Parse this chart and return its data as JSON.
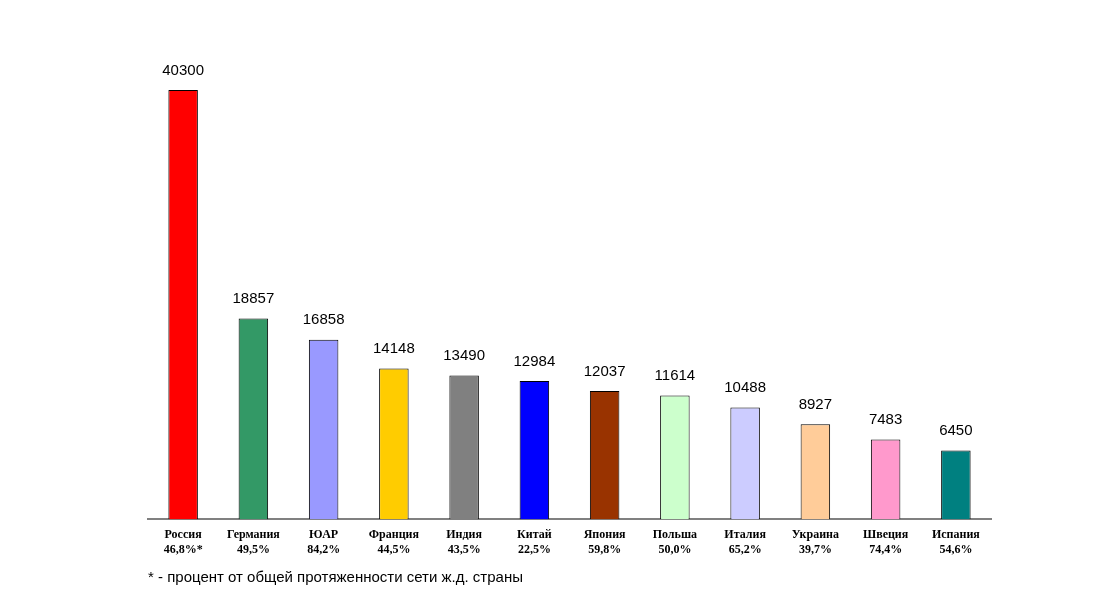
{
  "chart_data": {
    "type": "bar",
    "categories": [
      "Россия\n46,8%*",
      "Германия\n49,5%",
      "ЮАР\n84,2%",
      "Франция\n44,5%",
      "Индия\n43,5%",
      "Китай\n22,5%",
      "Япония\n59,8%",
      "Польша\n50,0%",
      "Италия\n65,2%",
      "Украина\n39,7%",
      "Швеция\n74,4%",
      "Испания\n54,6%"
    ],
    "values": [
      40300,
      18857,
      16858,
      14148,
      13490,
      12984,
      12037,
      11614,
      10488,
      8927,
      7483,
      6450
    ],
    "colors": [
      "#ff0000",
      "#339966",
      "#9999ff",
      "#ffcc00",
      "#808080",
      "#0000ff",
      "#993300",
      "#ccffcc",
      "#ccccff",
      "#ffcc99",
      "#ff99cc",
      "#008080"
    ],
    "data_labels": true,
    "grid": false,
    "legend": false,
    "annotations": [
      "* - процент от общей протяженности сети ж.д. страны"
    ]
  }
}
